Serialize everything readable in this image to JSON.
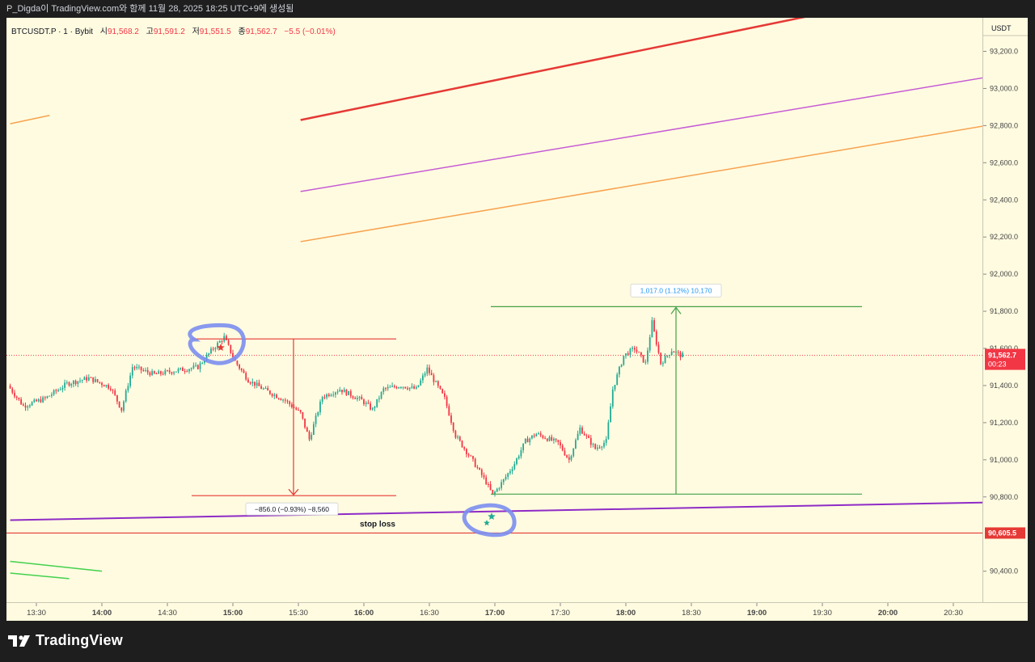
{
  "header": {
    "title": "P_Digda이 TradingView.com와 함께 11월 28, 2025 18:25 UTC+9에 생성됨"
  },
  "legend": {
    "symbol": "BTCUSDT.P · 1 · Bybit",
    "open_label": "시",
    "open": "91,568.2",
    "high_label": "고",
    "high": "91,591.2",
    "low_label": "저",
    "low": "91,551.5",
    "close_label": "종",
    "close": "91,562.7",
    "change": "−5.5 (−0.01%)"
  },
  "price_scale": {
    "currency": "USDT",
    "current_price": "91,562.7",
    "countdown": "00:23",
    "stop_price": "90,605.5"
  },
  "colors": {
    "background": "#fffbe0",
    "up_candle": "#22ab94",
    "down_candle": "#f23645",
    "upper_channel": "#e53935",
    "middle_channel": "#c65bd6",
    "lower_channel": "#f7a24f",
    "stop_line": "#e53935",
    "support_line": "#8e2bc6",
    "measure_down": "#e53935",
    "measure_up": "#43a047",
    "highlight_circle": "#7b8ef0"
  },
  "annotations": {
    "measure_down_label": "−856.0 (−0.93%) −8,560",
    "measure_up_label": "1,017.0 (1.12%) 10,170",
    "stop_loss_label": "stop loss"
  },
  "footer": {
    "brand": "TradingView"
  },
  "chart_data": {
    "type": "candlestick",
    "interval_minutes": 1,
    "ylim": [
      90320,
      93360
    ],
    "x_range": [
      "13:18",
      "20:45"
    ],
    "y_ticks": [
      "93,200.0",
      "93,000.0",
      "92,800.0",
      "92,600.0",
      "92,400.0",
      "92,200.0",
      "92,000.0",
      "91,800.0",
      "91,600.0",
      "91,400.0",
      "91,200.0",
      "91,000.0",
      "90,800.0",
      "90,400.0"
    ],
    "y_tick_values": [
      93200,
      93000,
      92800,
      92600,
      92400,
      92200,
      92000,
      91800,
      91600,
      91400,
      91200,
      91000,
      90800,
      90400
    ],
    "x_ticks": [
      "13:30",
      "14:00",
      "14:30",
      "15:00",
      "15:30",
      "16:00",
      "16:30",
      "17:00",
      "17:30",
      "18:00",
      "18:30",
      "19:00",
      "19:30",
      "20:00",
      "20:30"
    ],
    "price_path": [
      [
        "13:18",
        91400
      ],
      [
        "13:25",
        91290
      ],
      [
        "13:35",
        91330
      ],
      [
        "13:45",
        91410
      ],
      [
        "13:55",
        91440
      ],
      [
        "14:05",
        91390
      ],
      [
        "14:10",
        91270
      ],
      [
        "14:15",
        91500
      ],
      [
        "14:25",
        91460
      ],
      [
        "14:35",
        91480
      ],
      [
        "14:45",
        91500
      ],
      [
        "14:52",
        91600
      ],
      [
        "14:57",
        91660
      ],
      [
        "15:02",
        91530
      ],
      [
        "15:08",
        91430
      ],
      [
        "15:15",
        91380
      ],
      [
        "15:25",
        91320
      ],
      [
        "15:32",
        91250
      ],
      [
        "15:36",
        91110
      ],
      [
        "15:42",
        91340
      ],
      [
        "15:50",
        91380
      ],
      [
        "16:00",
        91320
      ],
      [
        "16:05",
        91270
      ],
      [
        "16:10",
        91380
      ],
      [
        "16:18",
        91400
      ],
      [
        "16:25",
        91380
      ],
      [
        "16:30",
        91490
      ],
      [
        "16:38",
        91330
      ],
      [
        "16:43",
        91130
      ],
      [
        "16:50",
        91010
      ],
      [
        "16:57",
        90880
      ],
      [
        "17:00",
        90810
      ],
      [
        "17:05",
        90890
      ],
      [
        "17:10",
        90980
      ],
      [
        "17:15",
        91100
      ],
      [
        "17:20",
        91140
      ],
      [
        "17:30",
        91090
      ],
      [
        "17:35",
        91000
      ],
      [
        "17:40",
        91170
      ],
      [
        "17:47",
        91060
      ],
      [
        "17:52",
        91100
      ],
      [
        "17:55",
        91380
      ],
      [
        "18:00",
        91560
      ],
      [
        "18:05",
        91600
      ],
      [
        "18:10",
        91520
      ],
      [
        "18:13",
        91740
      ],
      [
        "18:17",
        91520
      ],
      [
        "18:22",
        91590
      ],
      [
        "18:26",
        91563
      ]
    ],
    "key_levels": {
      "high_marker": 91651,
      "low_marker": 90807,
      "measure_up_top": 91825,
      "current_price": 91562.7,
      "stop_loss": 90605.5
    }
  }
}
